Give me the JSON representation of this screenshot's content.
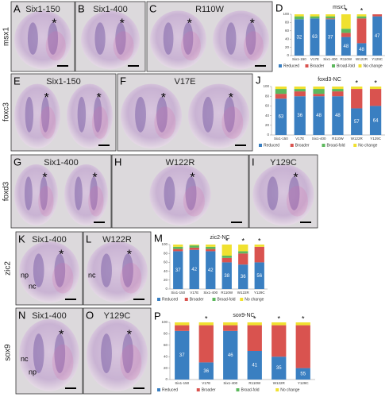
{
  "figure": {
    "row_labels": [
      "msx1",
      "foxc3",
      "foxd3",
      "zic2",
      "sox9"
    ],
    "panels": [
      {
        "letter": "A",
        "title": "Six1-150",
        "notes": [
          "*"
        ]
      },
      {
        "letter": "B",
        "title": "Six1-400",
        "notes": [
          "*"
        ]
      },
      {
        "letter": "C",
        "title": "R110W",
        "notes": [
          "*",
          "*"
        ]
      },
      {
        "letter": "E",
        "title": "Six1-150",
        "notes": [
          "*",
          "*"
        ]
      },
      {
        "letter": "F",
        "title": "V17E",
        "notes": [
          "*",
          "*"
        ]
      },
      {
        "letter": "G",
        "title": "Six1-400",
        "notes": [
          "*",
          "*"
        ]
      },
      {
        "letter": "H",
        "title": "W122R",
        "notes": [
          "*"
        ]
      },
      {
        "letter": "I",
        "title": "Y129C",
        "notes": [
          "*"
        ]
      },
      {
        "letter": "K",
        "title": "Six1-400",
        "notes": [
          "*",
          "np",
          "nc"
        ]
      },
      {
        "letter": "L",
        "title": "W122R",
        "notes": [
          "*",
          "nc"
        ]
      },
      {
        "letter": "N",
        "title": "Six1-400",
        "notes": [
          "*",
          "nc",
          "np"
        ]
      },
      {
        "letter": "O",
        "title": "Y129C",
        "notes": [
          "*"
        ]
      }
    ]
  },
  "chart_data": [
    {
      "type": "stacked_bar",
      "label": "D",
      "title": "msx1",
      "categories": [
        "Six1-150",
        "V17E",
        "Six1-400",
        "R110W",
        "W122R",
        "Y129C"
      ],
      "n": [
        32,
        63,
        37,
        48,
        48,
        47
      ],
      "ylim": [
        0,
        100
      ],
      "yticks": [
        0,
        20,
        40,
        60,
        80,
        100
      ],
      "annotations": [
        {
          "text": "*",
          "category": "R110W"
        },
        {
          "text": "*",
          "category": "W122R"
        }
      ],
      "series": [
        {
          "name": "Reduced",
          "color": "#3a7fc1",
          "values": [
            88,
            90,
            88,
            45,
            30,
            95
          ]
        },
        {
          "name": "Broader",
          "color": "#d9534f",
          "values": [
            0,
            0,
            2,
            10,
            60,
            5
          ]
        },
        {
          "name": "Broad-fold",
          "color": "#5cb85c",
          "values": [
            7,
            5,
            5,
            10,
            5,
            0
          ]
        },
        {
          "name": "No change",
          "color": "#f0e130",
          "values": [
            5,
            5,
            5,
            35,
            5,
            0
          ]
        }
      ]
    },
    {
      "type": "stacked_bar",
      "label": "J",
      "title": "foxd3-NC",
      "categories": [
        "Six1-150",
        "V17E",
        "Six1-400",
        "R110W",
        "W122R",
        "Y129C"
      ],
      "n": [
        63,
        36,
        48,
        48,
        57,
        64
      ],
      "ylim": [
        0,
        100
      ],
      "yticks": [
        0,
        20,
        40,
        60,
        80,
        100
      ],
      "annotations": [
        {
          "text": "*",
          "category": "W122R"
        },
        {
          "text": "*",
          "category": "Y129C"
        }
      ],
      "series": [
        {
          "name": "Reduced",
          "color": "#3a7fc1",
          "values": [
            75,
            80,
            80,
            80,
            55,
            60
          ]
        },
        {
          "name": "Broader",
          "color": "#d9534f",
          "values": [
            10,
            10,
            5,
            10,
            40,
            35
          ]
        },
        {
          "name": "Broad-fold",
          "color": "#5cb85c",
          "values": [
            10,
            5,
            10,
            5,
            0,
            0
          ]
        },
        {
          "name": "No change",
          "color": "#f0e130",
          "values": [
            5,
            5,
            5,
            5,
            5,
            5
          ]
        }
      ]
    },
    {
      "type": "stacked_bar",
      "label": "M",
      "title": "zic2-NC",
      "categories": [
        "Six1-150",
        "V17E",
        "Six1-400",
        "R110W",
        "W122R",
        "Y129C"
      ],
      "n": [
        37,
        42,
        42,
        38,
        36,
        56
      ],
      "ylim": [
        0,
        100
      ],
      "yticks": [
        0,
        20,
        40,
        60,
        80,
        100
      ],
      "annotations": [
        {
          "text": "*",
          "category": "R110W"
        },
        {
          "text": "*",
          "category": "W122R"
        },
        {
          "text": "*",
          "category": "Y129C"
        }
      ],
      "series": [
        {
          "name": "Reduced",
          "color": "#3a7fc1",
          "values": [
            85,
            88,
            85,
            60,
            55,
            60
          ]
        },
        {
          "name": "Broader",
          "color": "#d9534f",
          "values": [
            5,
            5,
            5,
            10,
            25,
            35
          ]
        },
        {
          "name": "Broad-fold",
          "color": "#5cb85c",
          "values": [
            5,
            5,
            5,
            5,
            5,
            0
          ]
        },
        {
          "name": "No change",
          "color": "#f0e130",
          "values": [
            5,
            2,
            5,
            25,
            15,
            5
          ]
        }
      ]
    },
    {
      "type": "stacked_bar",
      "label": "P",
      "title": "sox9-NC",
      "categories": [
        "Six1-150",
        "V17E",
        "Six1-400",
        "R110W",
        "W122R",
        "Y129C"
      ],
      "n": [
        37,
        36,
        46,
        41,
        35,
        55
      ],
      "ylim": [
        0,
        100
      ],
      "yticks": [
        0,
        20,
        40,
        60,
        80,
        100
      ],
      "annotations": [
        {
          "text": "*",
          "category": "V17E"
        },
        {
          "text": "*",
          "category": "R110W"
        },
        {
          "text": "*",
          "category": "W122R"
        },
        {
          "text": "*",
          "category": "Y129C"
        }
      ],
      "series": [
        {
          "name": "Reduced",
          "color": "#3a7fc1",
          "values": [
            85,
            30,
            85,
            50,
            40,
            20
          ]
        },
        {
          "name": "Broader",
          "color": "#d9534f",
          "values": [
            10,
            65,
            10,
            45,
            55,
            75
          ]
        },
        {
          "name": "Broad-fold",
          "color": "#5cb85c",
          "values": [
            0,
            0,
            0,
            0,
            0,
            0
          ]
        },
        {
          "name": "No change",
          "color": "#f0e130",
          "values": [
            5,
            5,
            5,
            5,
            5,
            5
          ]
        }
      ]
    }
  ]
}
